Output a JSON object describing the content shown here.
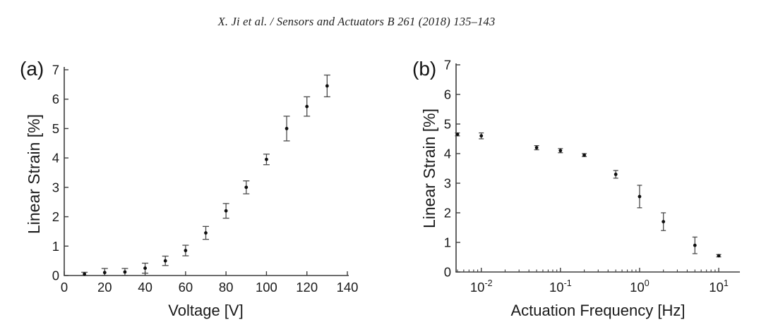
{
  "header": {
    "citation": "X. Ji et al. / Sensors and Actuators B 261 (2018) 135–143"
  },
  "colors": {
    "text": "#1a1a1a",
    "axis": "#3d3d3d",
    "marker": "#0f0f0f",
    "errorbar": "#4a4a4a",
    "background": "#ffffff"
  },
  "chart_data": [
    {
      "id": "a",
      "type": "scatter",
      "panel_label": "(a)",
      "title": "",
      "xlabel": "Voltage [V]",
      "ylabel": "Linear Strain [%]",
      "x_scale": "linear",
      "xlim": [
        0,
        140
      ],
      "ylim": [
        0,
        7
      ],
      "grid": false,
      "legend": "none",
      "x_ticks": [
        {
          "value": 0,
          "label": "0"
        },
        {
          "value": 20,
          "label": "20"
        },
        {
          "value": 40,
          "label": "40"
        },
        {
          "value": 60,
          "label": "60"
        },
        {
          "value": 80,
          "label": "80"
        },
        {
          "value": 100,
          "label": "100"
        },
        {
          "value": 120,
          "label": "120"
        },
        {
          "value": 140,
          "label": "140"
        }
      ],
      "y_ticks": [
        0,
        1,
        2,
        3,
        4,
        5,
        6,
        7
      ],
      "series": [
        {
          "name": "strain-vs-voltage",
          "marker": "point",
          "x": [
            10,
            20,
            30,
            40,
            50,
            60,
            70,
            80,
            90,
            100,
            110,
            120,
            130
          ],
          "y": [
            0.05,
            0.1,
            0.12,
            0.25,
            0.5,
            0.85,
            1.45,
            2.2,
            3.0,
            3.95,
            5.0,
            5.75,
            6.45
          ],
          "yerr": [
            0.06,
            0.14,
            0.12,
            0.17,
            0.16,
            0.18,
            0.22,
            0.25,
            0.22,
            0.18,
            0.42,
            0.33,
            0.37
          ]
        }
      ]
    },
    {
      "id": "b",
      "type": "scatter",
      "panel_label": "(b)",
      "title": "",
      "xlabel": "Actuation Frequency [Hz]",
      "ylabel": "Linear Strain [%]",
      "x_scale": "log",
      "xlim": [
        0.0048,
        18.5
      ],
      "ylim": [
        0,
        7
      ],
      "grid": false,
      "legend": "none",
      "x_ticks": [
        {
          "value": 0.01,
          "label": "10",
          "exponent": "-2"
        },
        {
          "value": 0.1,
          "label": "10",
          "exponent": "-1"
        },
        {
          "value": 1,
          "label": "10",
          "exponent": "0"
        },
        {
          "value": 10,
          "label": "10",
          "exponent": "1"
        }
      ],
      "y_ticks": [
        0,
        1,
        2,
        3,
        4,
        5,
        6,
        7
      ],
      "series": [
        {
          "name": "strain-vs-frequency",
          "marker": "point",
          "x": [
            0.005,
            0.01,
            0.05,
            0.1,
            0.2,
            0.5,
            1,
            2,
            5,
            10
          ],
          "y": [
            4.65,
            4.6,
            4.2,
            4.1,
            3.95,
            3.3,
            2.55,
            1.7,
            0.9,
            0.55
          ],
          "yerr": [
            0.05,
            0.1,
            0.07,
            0.07,
            0.05,
            0.13,
            0.38,
            0.3,
            0.28,
            0.04
          ]
        }
      ]
    }
  ]
}
